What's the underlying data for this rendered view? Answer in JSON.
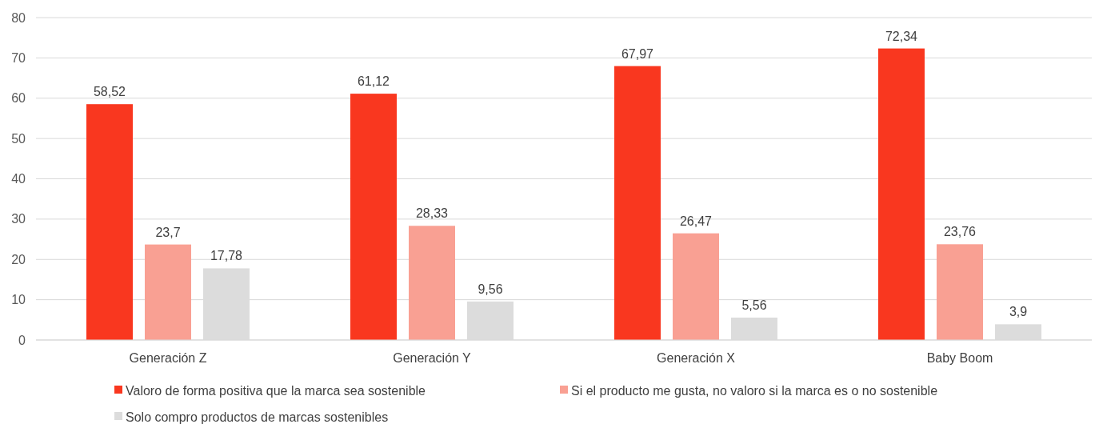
{
  "chart_data": {
    "type": "bar",
    "categories": [
      "Generación Z",
      "Generación Y",
      "Generación X",
      "Baby Boom"
    ],
    "series": [
      {
        "name": "Valoro de forma positiva que la marca sea sostenible",
        "color": "#f9371f",
        "values": [
          58.52,
          61.12,
          67.97,
          72.34
        ],
        "value_labels": [
          "58,52",
          "61,12",
          "67,97",
          "72,34"
        ]
      },
      {
        "name": "Si el producto me gusta, no valoro si la marca es o no sostenible",
        "color": "#f9a093",
        "values": [
          23.7,
          28.33,
          26.47,
          23.76
        ],
        "value_labels": [
          "23,7",
          "28,33",
          "26,47",
          "23,76"
        ]
      },
      {
        "name": "Solo compro productos de marcas sostenibles",
        "color": "#dcdcdc",
        "values": [
          17.78,
          9.56,
          5.56,
          3.9
        ],
        "value_labels": [
          "17,78",
          "9,56",
          "5,56",
          "3,9"
        ]
      }
    ],
    "ylim": [
      0,
      80
    ],
    "yticks": [
      0,
      10,
      20,
      30,
      40,
      50,
      60,
      70,
      80
    ],
    "grid": "y",
    "legend": "bottom"
  }
}
